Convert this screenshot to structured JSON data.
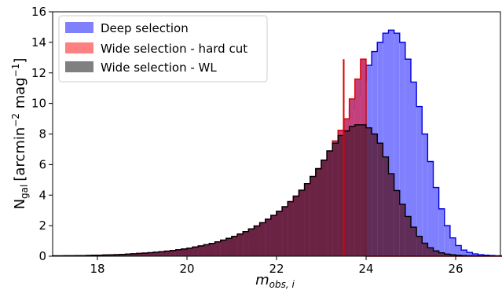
{
  "chart_data": {
    "type": "histogram",
    "title": "",
    "xlabel_main": "m",
    "xlabel_sub": "obs, i",
    "ylabel_main": "N",
    "ylabel_sub": "gal",
    "ylabel_units": "[arcmin",
    "ylabel_exp1": "−2",
    "ylabel_mid": " mag",
    "ylabel_exp2": "−1",
    "ylabel_close": "]",
    "xlim": [
      17,
      27
    ],
    "ylim": [
      0,
      16
    ],
    "xticks": [
      18,
      20,
      22,
      24,
      26
    ],
    "yticks": [
      0,
      2,
      4,
      6,
      8,
      10,
      12,
      14,
      16
    ],
    "grid": false,
    "legend_position": "top-left",
    "bin_width": 0.125,
    "bin_start": 17,
    "series": [
      {
        "name": "Deep selection",
        "fill": "#8080ff",
        "edge": "#0000dd",
        "values": [
          0.02,
          0.02,
          0.03,
          0.03,
          0.04,
          0.04,
          0.05,
          0.06,
          0.07,
          0.08,
          0.09,
          0.1,
          0.12,
          0.14,
          0.16,
          0.18,
          0.2,
          0.23,
          0.26,
          0.29,
          0.33,
          0.37,
          0.42,
          0.47,
          0.53,
          0.6,
          0.67,
          0.75,
          0.84,
          0.94,
          1.05,
          1.17,
          1.3,
          1.45,
          1.61,
          1.79,
          1.98,
          2.19,
          2.42,
          2.67,
          2.94,
          3.24,
          3.57,
          3.93,
          4.32,
          4.75,
          5.22,
          5.73,
          6.29,
          6.89,
          7.54,
          8.24,
          8.8,
          9.6,
          10.5,
          11.5,
          12.5,
          13.4,
          14.0,
          14.6,
          14.8,
          14.6,
          14.0,
          12.9,
          11.4,
          9.8,
          8.0,
          6.2,
          4.5,
          3.1,
          2.0,
          1.2,
          0.7,
          0.4,
          0.25,
          0.15,
          0.1,
          0.07,
          0.05,
          0.03,
          0.02
        ]
      },
      {
        "name": "Wide selection - hard cut",
        "fill": "#ff8080",
        "edge": "#dd0000",
        "values": [
          0.02,
          0.02,
          0.03,
          0.03,
          0.04,
          0.04,
          0.05,
          0.06,
          0.07,
          0.08,
          0.09,
          0.1,
          0.12,
          0.14,
          0.16,
          0.18,
          0.2,
          0.23,
          0.26,
          0.29,
          0.33,
          0.37,
          0.42,
          0.47,
          0.53,
          0.6,
          0.67,
          0.75,
          0.84,
          0.94,
          1.05,
          1.17,
          1.3,
          1.45,
          1.61,
          1.79,
          1.98,
          2.19,
          2.42,
          2.67,
          2.94,
          3.24,
          3.57,
          3.93,
          4.32,
          4.75,
          5.22,
          5.73,
          6.29,
          6.89,
          7.54,
          8.24,
          9.0,
          10.3,
          11.6,
          12.9,
          0,
          0,
          0,
          0,
          0,
          0,
          0,
          0,
          0,
          0,
          0,
          0,
          0,
          0,
          0,
          0,
          0,
          0,
          0,
          0,
          0,
          0,
          0,
          0,
          0
        ]
      },
      {
        "name": "Wide selection - WL",
        "fill": "#808080",
        "edge": "#000000",
        "values": [
          0.02,
          0.02,
          0.03,
          0.03,
          0.04,
          0.04,
          0.05,
          0.06,
          0.07,
          0.08,
          0.09,
          0.1,
          0.12,
          0.14,
          0.16,
          0.18,
          0.2,
          0.23,
          0.26,
          0.29,
          0.33,
          0.37,
          0.42,
          0.47,
          0.53,
          0.6,
          0.67,
          0.75,
          0.84,
          0.94,
          1.05,
          1.17,
          1.3,
          1.45,
          1.61,
          1.79,
          1.98,
          2.19,
          2.42,
          2.67,
          2.94,
          3.24,
          3.57,
          3.93,
          4.32,
          4.75,
          5.22,
          5.73,
          6.29,
          6.89,
          7.4,
          7.9,
          8.2,
          8.5,
          8.6,
          8.6,
          8.4,
          8.0,
          7.4,
          6.5,
          5.4,
          4.3,
          3.4,
          2.6,
          1.9,
          1.3,
          0.85,
          0.55,
          0.35,
          0.22,
          0.14,
          0.09,
          0.06,
          0.04,
          0.03,
          0.02,
          0.01,
          0.01,
          0.01,
          0.01,
          0.01
        ]
      }
    ],
    "cut_line": {
      "x": 23.5,
      "color": "#dd0000"
    }
  }
}
